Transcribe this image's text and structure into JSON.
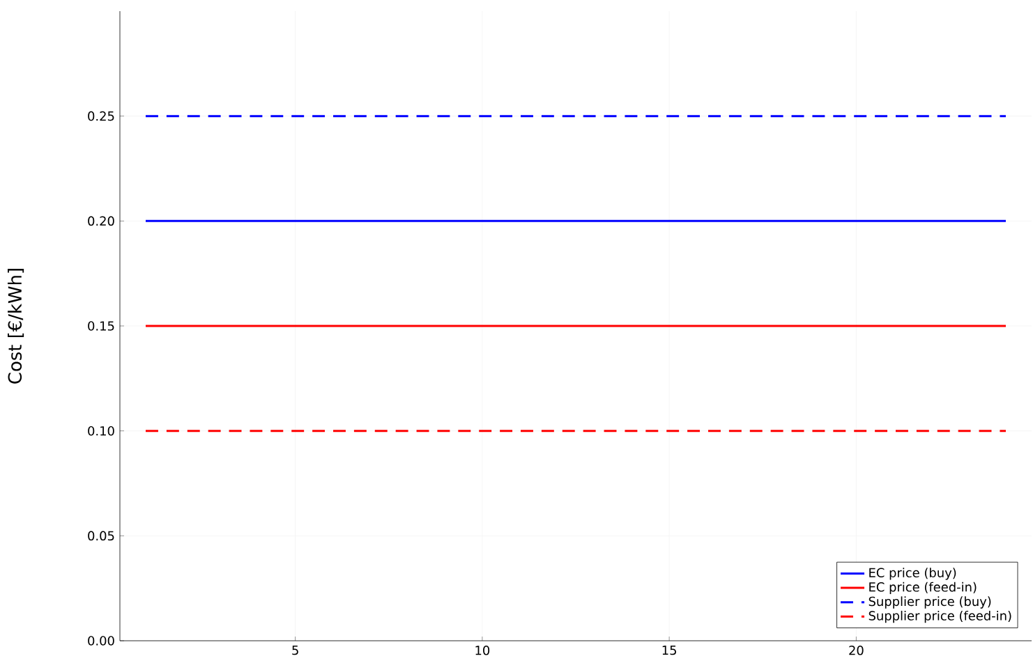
{
  "chart_data": {
    "type": "line",
    "ylabel": "Cost [€/kWh]",
    "x": [
      1,
      24
    ],
    "series": [
      {
        "name": "EC price (buy)",
        "color": "#0000ff",
        "values": [
          0.2,
          0.2
        ],
        "line_style": "solid"
      },
      {
        "name": "EC price (feed-in)",
        "color": "#ff0000",
        "values": [
          0.15,
          0.15
        ],
        "line_style": "solid"
      },
      {
        "name": "Supplier price (buy)",
        "color": "#0000ff",
        "values": [
          0.25,
          0.25
        ],
        "line_style": "dashed"
      },
      {
        "name": "Supplier price (feed-in)",
        "color": "#ff0000",
        "values": [
          0.1,
          0.1
        ],
        "line_style": "dashed"
      }
    ],
    "xlim": [
      0.31,
      24.69
    ],
    "ylim": [
      0,
      0.3
    ],
    "xticks": [
      5,
      10,
      15,
      20
    ],
    "yticks": [
      {
        "value": 0,
        "label": "0.00"
      },
      {
        "value": 0.05,
        "label": "0.05"
      },
      {
        "value": 0.1,
        "label": "0.10"
      },
      {
        "value": 0.15,
        "label": "0.15"
      },
      {
        "value": 0.2,
        "label": "0.20"
      },
      {
        "value": 0.25,
        "label": "0.25"
      }
    ],
    "grid": true,
    "legend": "bottom right",
    "marker": "none"
  }
}
